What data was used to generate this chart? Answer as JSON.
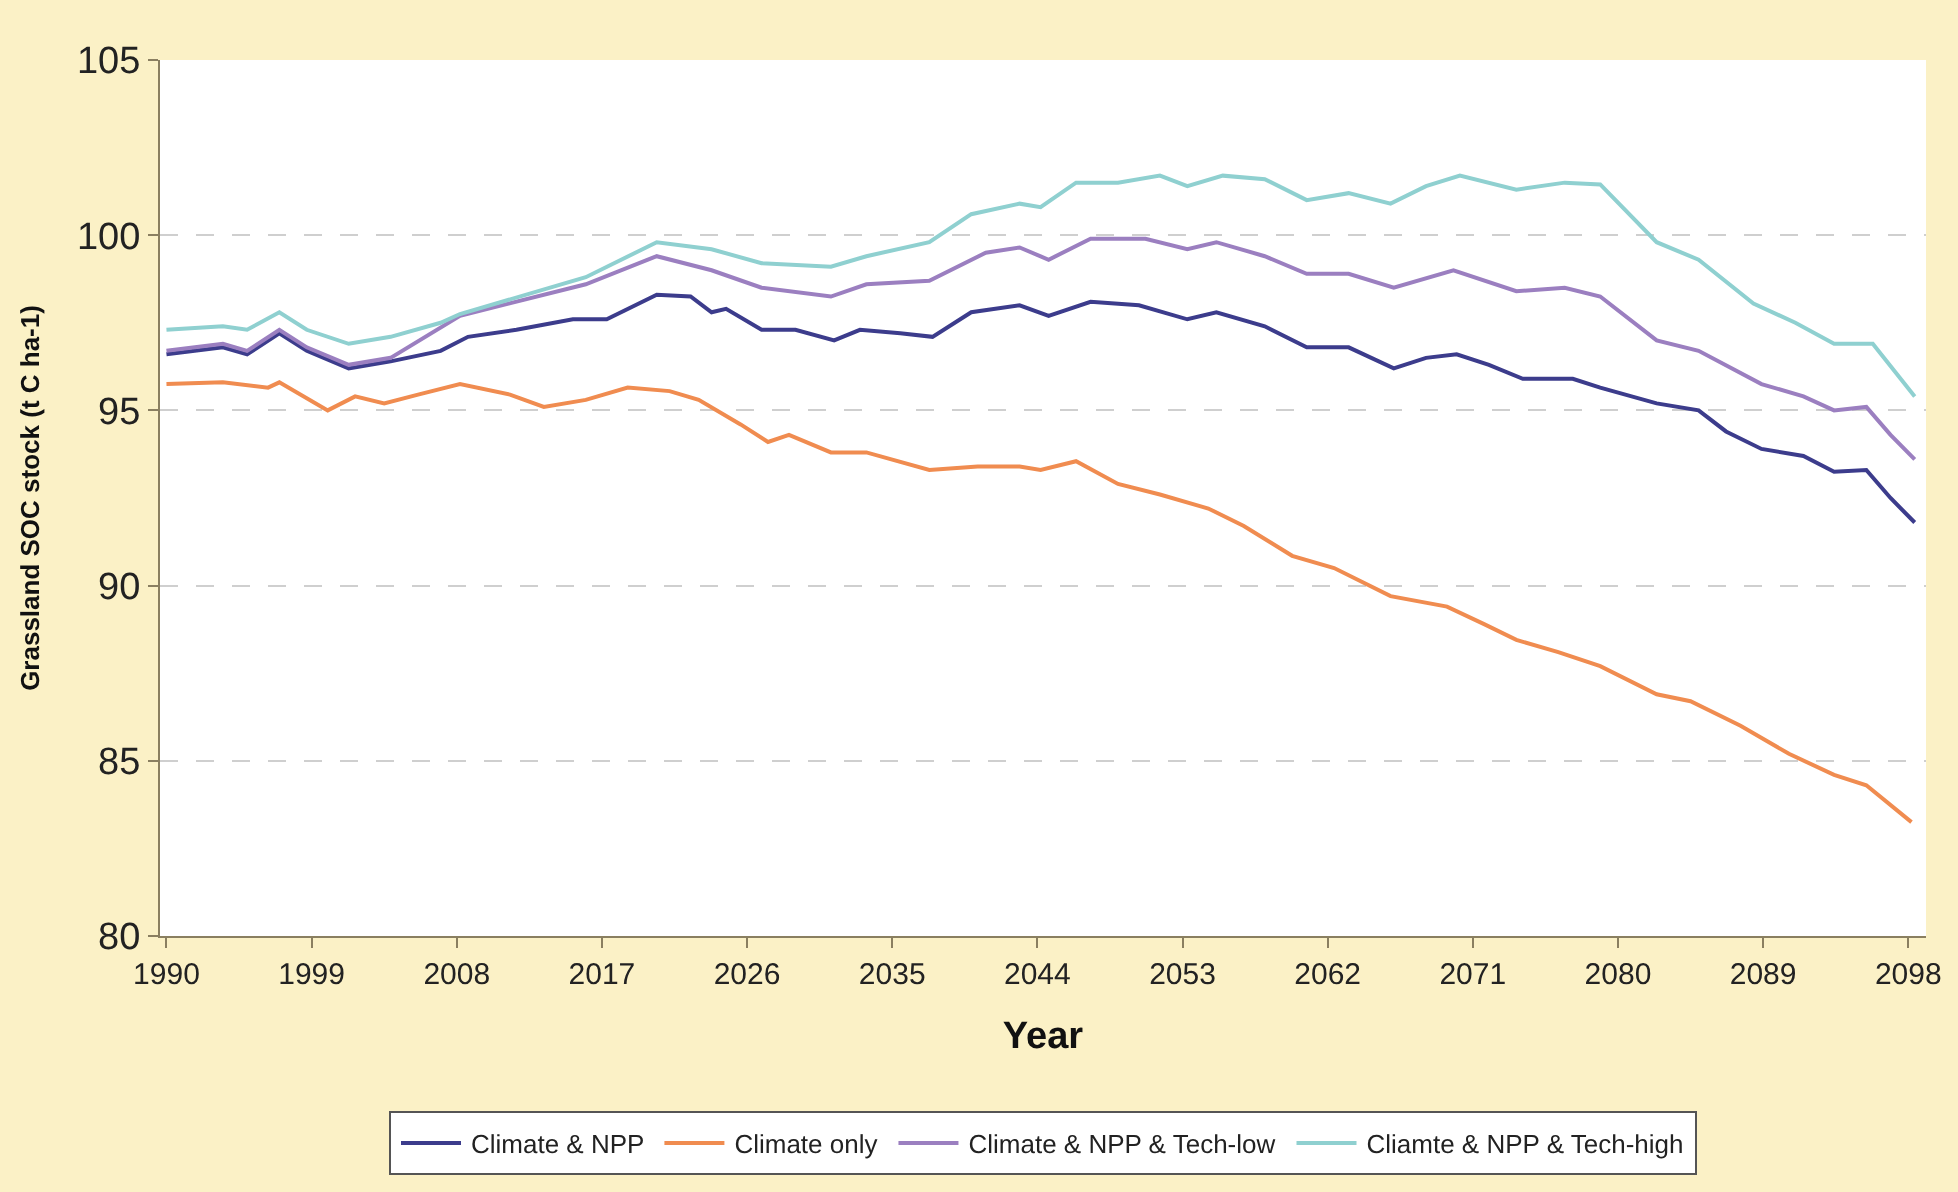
{
  "chart_data": {
    "type": "line",
    "xlabel": "Year",
    "ylabel": "Grassland SOC stock (t C ha-1)",
    "xlim": [
      1989.6,
      2099.1
    ],
    "xticks": [
      1990,
      1999,
      2008,
      2017,
      2026,
      2035,
      2044,
      2053,
      2062,
      2071,
      2080,
      2089,
      2098
    ],
    "ylim": [
      80,
      105
    ],
    "yticks": [
      80,
      85,
      90,
      95,
      100,
      105
    ],
    "grid": "y",
    "legend": "bottom",
    "marker": "none",
    "line_style": "solid",
    "series": [
      {
        "name": "Climate & NPP",
        "color": "#3c3c8c",
        "x": [
          1990,
          1993.5,
          1995,
          1997,
          1998.7,
          2001.3,
          2003.9,
          2007,
          2008.7,
          2011.7,
          2015.2,
          2017.3,
          2020.4,
          2022.5,
          2023.8,
          2024.7,
          2026.9,
          2029,
          2031.4,
          2033,
          2035.5,
          2037.5,
          2039.9,
          2042.9,
          2044.7,
          2047.3,
          2050.3,
          2053.3,
          2055.1,
          2058.1,
          2060.7,
          2063.3,
          2066.1,
          2068.1,
          2070,
          2072,
          2074.1,
          2077.2,
          2078.9,
          2082.4,
          2085,
          2086.7,
          2088.9,
          2091.5,
          2093.4,
          2095.4,
          2096.9,
          2098.4
        ],
        "values": [
          96.6,
          96.8,
          96.6,
          97.2,
          96.7,
          96.2,
          96.4,
          96.7,
          97.1,
          97.3,
          97.6,
          97.6,
          98.3,
          98.25,
          97.8,
          97.9,
          97.3,
          97.3,
          97.0,
          97.3,
          97.2,
          97.1,
          97.8,
          98.0,
          97.7,
          98.1,
          98.0,
          97.6,
          97.8,
          97.4,
          96.8,
          96.8,
          96.2,
          96.5,
          96.6,
          96.3,
          95.9,
          95.9,
          95.65,
          95.2,
          95.0,
          94.4,
          93.9,
          93.7,
          93.25,
          93.3,
          92.5,
          91.8
        ]
      },
      {
        "name": "Climate only",
        "color": "#f08c50",
        "x": [
          1990,
          1993.5,
          1996.3,
          1997,
          2000,
          2001.7,
          2003.5,
          2005.6,
          2008.2,
          2011.3,
          2013.4,
          2016,
          2018.6,
          2021.2,
          2023,
          2025.6,
          2027.3,
          2028.6,
          2031.2,
          2033.4,
          2037.3,
          2040.3,
          2042.9,
          2044.2,
          2046.4,
          2049,
          2051.6,
          2054.6,
          2056.8,
          2059.8,
          2062.4,
          2065.9,
          2069.4,
          2071.7,
          2073.7,
          2076.3,
          2078.9,
          2082.4,
          2084.5,
          2087.6,
          2090.6,
          2093.4,
          2095.4,
          2098.2
        ],
        "values": [
          95.75,
          95.8,
          95.65,
          95.8,
          95.0,
          95.4,
          95.2,
          95.45,
          95.75,
          95.45,
          95.1,
          95.3,
          95.65,
          95.55,
          95.3,
          94.6,
          94.1,
          94.3,
          93.8,
          93.8,
          93.3,
          93.4,
          93.4,
          93.3,
          93.55,
          92.9,
          92.6,
          92.2,
          91.7,
          90.85,
          90.5,
          89.7,
          89.4,
          88.9,
          88.45,
          88.1,
          87.7,
          86.9,
          86.7,
          86.0,
          85.2,
          84.6,
          84.3,
          83.25
        ]
      },
      {
        "name": "Climate & NPP & Tech-low",
        "color": "#9b7fc0",
        "x": [
          1990,
          1993.5,
          1995,
          1997,
          1998.7,
          2001.3,
          2003.9,
          2008.2,
          2016,
          2020.4,
          2023.8,
          2026.9,
          2031.2,
          2033.4,
          2037.3,
          2040.8,
          2042.9,
          2044.7,
          2047.3,
          2050.7,
          2053.3,
          2055.1,
          2058.1,
          2060.7,
          2063.3,
          2066.1,
          2069.8,
          2073.7,
          2076.7,
          2078.9,
          2082.4,
          2085,
          2088.9,
          2091.5,
          2093.4,
          2095.4,
          2096.9,
          2098.4
        ],
        "values": [
          96.7,
          96.9,
          96.7,
          97.3,
          96.8,
          96.3,
          96.5,
          97.7,
          98.6,
          99.4,
          99.0,
          98.5,
          98.25,
          98.6,
          98.7,
          99.5,
          99.65,
          99.3,
          99.9,
          99.9,
          99.6,
          99.8,
          99.4,
          98.9,
          98.9,
          98.5,
          99.0,
          98.4,
          98.5,
          98.25,
          97.0,
          96.7,
          95.75,
          95.4,
          95.0,
          95.1,
          94.3,
          93.6
        ]
      },
      {
        "name": "Cliamte & NPP & Tech-high",
        "color": "#8fd0d0",
        "x": [
          1990,
          1993.5,
          1995,
          1997,
          1998.7,
          2001.3,
          2003.9,
          2007,
          2008.2,
          2016,
          2020.4,
          2023.8,
          2026.9,
          2031.2,
          2033.4,
          2037.3,
          2039.9,
          2042.9,
          2044.2,
          2046.4,
          2049,
          2051.6,
          2053.3,
          2055.5,
          2058.1,
          2060.7,
          2063.3,
          2065.9,
          2068.1,
          2070.2,
          2073.7,
          2076.7,
          2078.9,
          2082.4,
          2085,
          2088.4,
          2091,
          2093.4,
          2095.8,
          2098.4
        ],
        "values": [
          97.3,
          97.4,
          97.3,
          97.8,
          97.3,
          96.9,
          97.1,
          97.5,
          97.75,
          98.8,
          99.8,
          99.6,
          99.2,
          99.1,
          99.4,
          99.8,
          100.6,
          100.9,
          100.8,
          101.5,
          101.5,
          101.7,
          101.4,
          101.7,
          101.6,
          101.0,
          101.2,
          100.9,
          101.4,
          101.7,
          101.3,
          101.5,
          101.45,
          99.8,
          99.3,
          98.05,
          97.5,
          96.9,
          96.9,
          95.4
        ]
      }
    ]
  }
}
